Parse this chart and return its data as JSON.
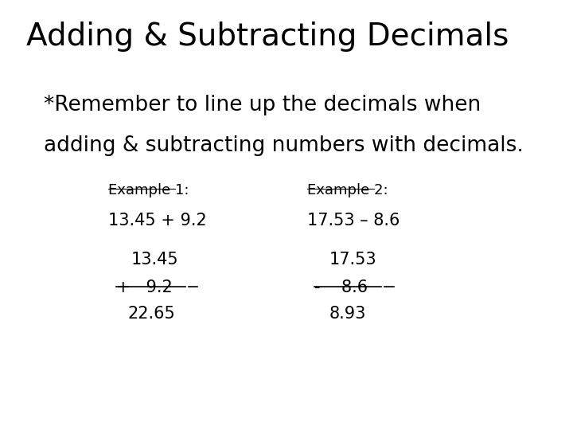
{
  "title": "Adding & Subtracting Decimals",
  "subtitle_line1": "*Remember to line up the decimals when",
  "subtitle_line2": "adding & subtracting numbers with decimals.",
  "example1_label": "Example 1:",
  "example2_label": "Example 2:",
  "example1_inline": "13.45 + 9.2",
  "example2_inline": "17.53 – 8.6",
  "ex1_num1": "13.45",
  "ex1_op_num2": "+   9.2",
  "ex1_result": "22.65",
  "ex2_num1": "17.53",
  "ex2_op_num2": "-    8.6",
  "ex2_result": "8.93",
  "bg_color": "#ffffff",
  "text_color": "#000000",
  "title_fontsize": 28,
  "subtitle_fontsize": 19,
  "label_fontsize": 13,
  "body_fontsize": 15
}
